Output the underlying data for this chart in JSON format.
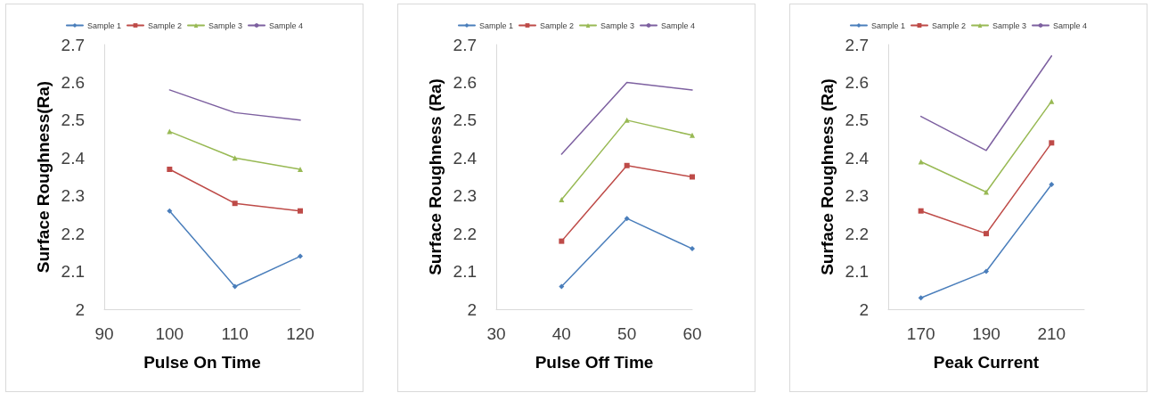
{
  "chart_data": [
    {
      "type": "line",
      "xlabel": "Pulse On Time",
      "ylabel": "Surface Roughness(Ra)",
      "x": [
        100,
        110,
        120
      ],
      "xlim": [
        90,
        120
      ],
      "xticks": [
        90,
        100,
        110,
        120
      ],
      "ylim": [
        2,
        2.7
      ],
      "yticks": [
        2,
        2.1,
        2.2,
        2.3,
        2.4,
        2.5,
        2.6,
        2.7
      ],
      "grid": false,
      "legend": "top",
      "series": [
        {
          "name": "Sample 1",
          "color": "#4a7ebb",
          "marker": "diamond",
          "values": [
            2.26,
            2.06,
            2.14
          ]
        },
        {
          "name": "Sample 2",
          "color": "#be4b48",
          "marker": "square",
          "values": [
            2.37,
            2.28,
            2.26
          ]
        },
        {
          "name": "Sample 3",
          "color": "#98b954",
          "marker": "triangle",
          "values": [
            2.47,
            2.4,
            2.37
          ]
        },
        {
          "name": "Sample 4",
          "color": "#7d60a0",
          "marker": "none",
          "values": [
            2.58,
            2.52,
            2.5
          ]
        }
      ]
    },
    {
      "type": "line",
      "xlabel": "Pulse Off Time",
      "ylabel": "Surface Roughness (Ra)",
      "x": [
        40,
        50,
        60
      ],
      "xlim": [
        30,
        60
      ],
      "xticks": [
        30,
        40,
        50,
        60
      ],
      "ylim": [
        2,
        2.7
      ],
      "yticks": [
        2,
        2.1,
        2.2,
        2.3,
        2.4,
        2.5,
        2.6,
        2.7
      ],
      "grid": false,
      "legend": "top",
      "series": [
        {
          "name": "Sample 1",
          "color": "#4a7ebb",
          "marker": "diamond",
          "values": [
            2.06,
            2.24,
            2.16
          ]
        },
        {
          "name": "Sample 2",
          "color": "#be4b48",
          "marker": "square",
          "values": [
            2.18,
            2.38,
            2.35
          ]
        },
        {
          "name": "Sample 3",
          "color": "#98b954",
          "marker": "triangle",
          "values": [
            2.29,
            2.5,
            2.46
          ]
        },
        {
          "name": "Sample 4",
          "color": "#7d60a0",
          "marker": "none",
          "values": [
            2.41,
            2.6,
            2.58
          ]
        }
      ]
    },
    {
      "type": "line",
      "xlabel": "Peak Current",
      "ylabel": "Surface Roughness (Ra)",
      "categories": [
        "170",
        "190",
        "210"
      ],
      "ylim": [
        2,
        2.7
      ],
      "yticks": [
        2,
        2.1,
        2.2,
        2.3,
        2.4,
        2.5,
        2.6,
        2.7
      ],
      "grid": false,
      "legend": "top",
      "series": [
        {
          "name": "Sample 1",
          "color": "#4a7ebb",
          "marker": "diamond",
          "values": [
            2.03,
            2.1,
            2.33
          ]
        },
        {
          "name": "Sample 2",
          "color": "#be4b48",
          "marker": "square",
          "values": [
            2.26,
            2.2,
            2.44
          ]
        },
        {
          "name": "Sample 3",
          "color": "#98b954",
          "marker": "triangle",
          "values": [
            2.39,
            2.31,
            2.55
          ]
        },
        {
          "name": "Sample 4",
          "color": "#7d60a0",
          "marker": "none",
          "values": [
            2.51,
            2.42,
            2.67
          ]
        }
      ]
    }
  ]
}
